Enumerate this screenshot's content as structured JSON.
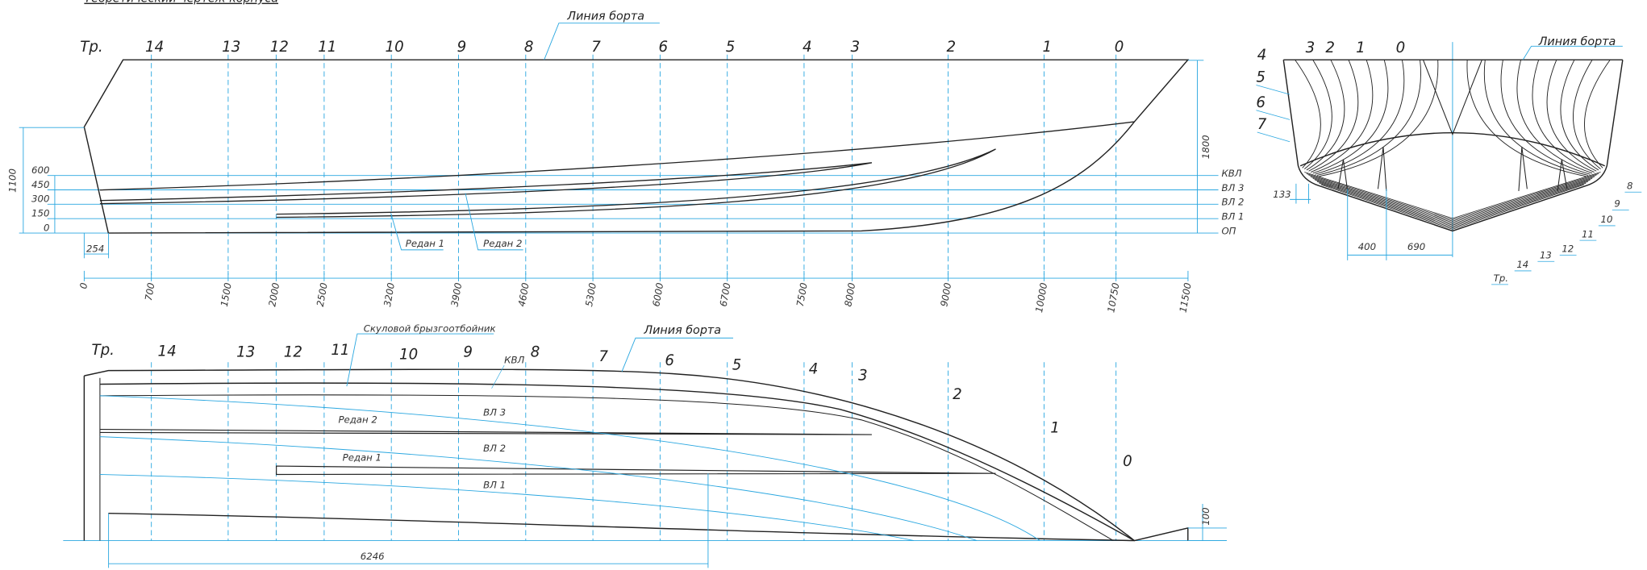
{
  "header": {
    "title": "Теоретический чертеж корпуса"
  },
  "profile": {
    "sheer_label": "Линия борта",
    "stations": [
      "Тр.",
      "14",
      "13",
      "12",
      "11",
      "10",
      "9",
      "8",
      "7",
      "6",
      "5",
      "4",
      "3",
      "2",
      "1",
      "0"
    ],
    "dims": [
      0,
      700,
      1500,
      2000,
      2500,
      3200,
      3900,
      4600,
      5300,
      6000,
      6700,
      7500,
      8000,
      9000,
      10000,
      10750,
      11500
    ],
    "waterlines": [
      {
        "height": 0,
        "name": "ОП"
      },
      {
        "height": 150,
        "name": "ВЛ 1"
      },
      {
        "height": 300,
        "name": "ВЛ 2"
      },
      {
        "height": 450,
        "name": "ВЛ 3"
      },
      {
        "height": 600,
        "name": "КВЛ"
      }
    ],
    "height_total": 1100,
    "transom_offset": 254,
    "depth": 1800,
    "redan_1": "Редан 1",
    "redan_2": "Редан 2"
  },
  "body_plan": {
    "sheer_label": "Линия борта",
    "top_labels": [
      "4",
      "3",
      "2",
      "1",
      "0"
    ],
    "side_labels": [
      "5",
      "6",
      "7"
    ],
    "bottom_labels": [
      "8",
      "9",
      "10",
      "11",
      "12",
      "13",
      "14",
      "Тр."
    ],
    "dims": [
      133,
      400,
      690
    ]
  },
  "plan": {
    "stations": [
      "Тр.",
      "14",
      "13",
      "12",
      "11",
      "10",
      "9",
      "8",
      "7",
      "6",
      "5",
      "4",
      "3",
      "2",
      "1",
      "0"
    ],
    "chine_rail_label": "Скуловой брызгоотбойник",
    "sheer_label": "Линия борта",
    "kvl_label": "КВЛ",
    "redan_2": "Редан 2",
    "wl3": "ВЛ 3",
    "redan_1": "Редан 1",
    "wl2": "ВЛ 2",
    "wl1": "ВЛ 1",
    "tip_height": 100,
    "redan_length": 6246
  }
}
